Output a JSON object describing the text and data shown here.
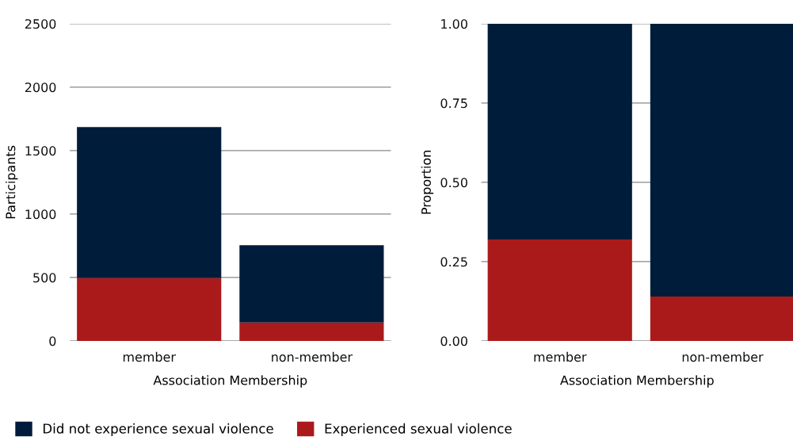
{
  "chart_data": [
    {
      "type": "bar",
      "stacked": true,
      "categories": [
        "member",
        "non-member"
      ],
      "xlabel": "Association Membership",
      "ylabel": "Participants",
      "ylim": [
        0,
        2500
      ],
      "yticks": [
        0,
        500,
        1000,
        1500,
        2000,
        2500
      ],
      "grid": "y",
      "legend": "bottom",
      "series": [
        {
          "name": "Experienced sexual violence",
          "color": "#ab1a1a",
          "values": [
            495,
            145
          ]
        },
        {
          "name": "Did not experience sexual violence",
          "color": "#001c3b",
          "values": [
            1190,
            610
          ]
        }
      ]
    },
    {
      "type": "bar",
      "stacked": true,
      "categories": [
        "member",
        "non-member"
      ],
      "xlabel": "Association Membership",
      "ylabel": "Proportion",
      "ylim": [
        0,
        1
      ],
      "yticks": [
        {
          "value": 0,
          "label": "0.00"
        },
        {
          "value": 0.25,
          "label": "0.25"
        },
        {
          "value": 0.5,
          "label": "0.50"
        },
        {
          "value": 0.75,
          "label": "0.75"
        },
        {
          "value": 1,
          "label": "1.00"
        }
      ],
      "grid": "y",
      "series": [
        {
          "color": "#ab1a1a",
          "values": [
            0.32,
            0.14
          ]
        },
        {
          "color": "#001c3b",
          "values": [
            0.68,
            0.86
          ]
        }
      ]
    }
  ]
}
